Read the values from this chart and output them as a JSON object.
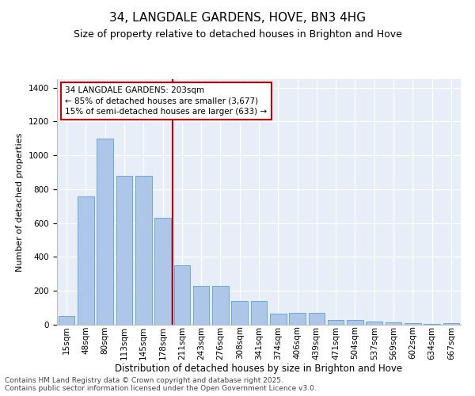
{
  "title": "34, LANGDALE GARDENS, HOVE, BN3 4HG",
  "subtitle": "Size of property relative to detached houses in Brighton and Hove",
  "xlabel": "Distribution of detached houses by size in Brighton and Hove",
  "ylabel": "Number of detached properties",
  "categories": [
    "15sqm",
    "48sqm",
    "80sqm",
    "113sqm",
    "145sqm",
    "178sqm",
    "211sqm",
    "243sqm",
    "276sqm",
    "308sqm",
    "341sqm",
    "374sqm",
    "406sqm",
    "439sqm",
    "471sqm",
    "504sqm",
    "537sqm",
    "569sqm",
    "602sqm",
    "634sqm",
    "667sqm"
  ],
  "values": [
    50,
    760,
    1100,
    880,
    880,
    630,
    350,
    230,
    230,
    140,
    140,
    65,
    70,
    70,
    30,
    30,
    20,
    15,
    10,
    5,
    10
  ],
  "bar_color": "#aec6e8",
  "bar_edge_color": "#5a9fd4",
  "vline_color": "#cc0000",
  "vline_pos": 5.5,
  "annotation_line1": "34 LANGDALE GARDENS: 203sqm",
  "annotation_line2": "← 85% of detached houses are smaller (3,677)",
  "annotation_line3": "15% of semi-detached houses are larger (633) →",
  "annotation_box_color": "#cc0000",
  "footer": "Contains HM Land Registry data © Crown copyright and database right 2025.\nContains public sector information licensed under the Open Government Licence v3.0.",
  "background_color": "#e8eef8",
  "fig_background": "#ffffff",
  "ylim": [
    0,
    1450
  ],
  "yticks": [
    0,
    200,
    400,
    600,
    800,
    1000,
    1200,
    1400
  ],
  "title_fontsize": 11,
  "subtitle_fontsize": 9,
  "ylabel_fontsize": 8,
  "xlabel_fontsize": 8.5,
  "tick_fontsize": 7.5,
  "annotation_fontsize": 7.5,
  "footer_fontsize": 6.5
}
